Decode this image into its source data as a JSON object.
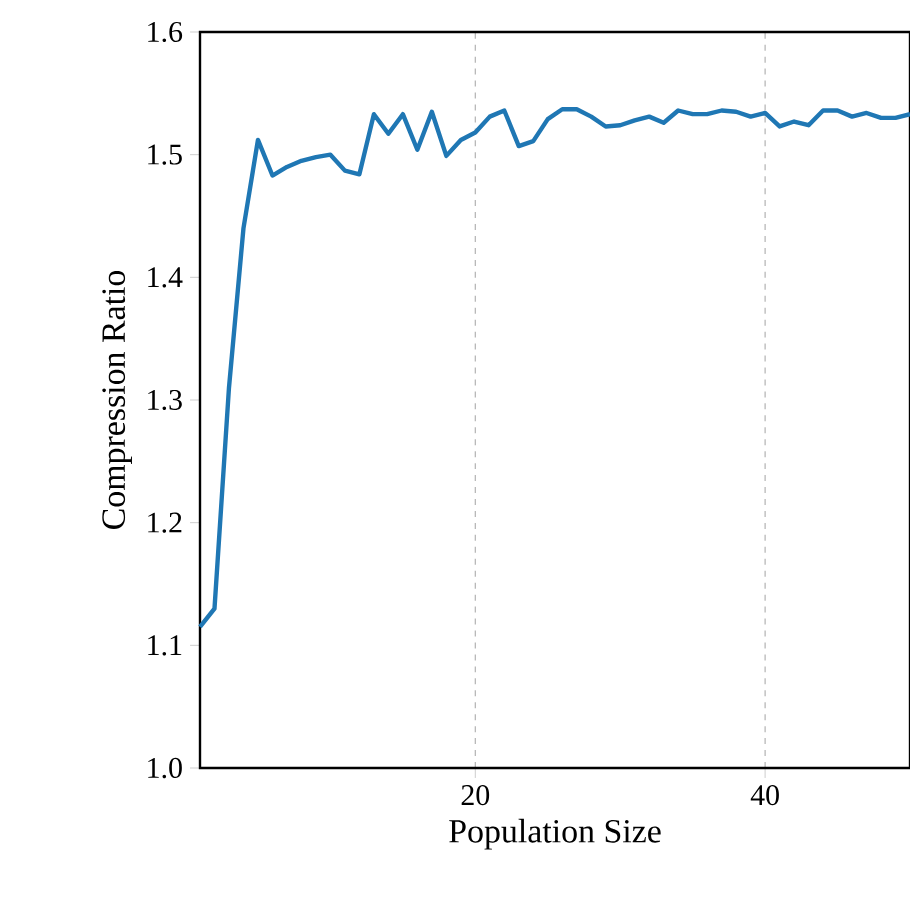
{
  "chart_data": {
    "type": "line",
    "xlabel": "Population Size",
    "ylabel": "Compression Ratio",
    "x": [
      1,
      2,
      3,
      4,
      5,
      6,
      7,
      8,
      9,
      10,
      11,
      12,
      13,
      14,
      15,
      16,
      17,
      18,
      19,
      20,
      21,
      22,
      23,
      24,
      25,
      26,
      27,
      28,
      29,
      30,
      31,
      32,
      33,
      34,
      35,
      36,
      37,
      38,
      39,
      40,
      41,
      42,
      43,
      44,
      45,
      46,
      47,
      48,
      49,
      50
    ],
    "series": [
      {
        "color": "#1f77b4",
        "values": [
          1.115,
          1.13,
          1.31,
          1.44,
          1.512,
          1.483,
          1.49,
          1.495,
          1.498,
          1.5,
          1.487,
          1.484,
          1.533,
          1.517,
          1.533,
          1.504,
          1.535,
          1.499,
          1.512,
          1.518,
          1.531,
          1.536,
          1.507,
          1.511,
          1.529,
          1.537,
          1.537,
          1.531,
          1.523,
          1.524,
          1.528,
          1.531,
          1.526,
          1.536,
          1.533,
          1.533,
          1.536,
          1.535,
          1.531,
          1.534,
          1.523,
          1.527,
          1.524,
          1.536,
          1.536,
          1.531,
          1.534,
          1.53,
          1.53,
          1.533
        ]
      }
    ],
    "xlim": [
      1,
      50
    ],
    "xticks": [
      20,
      40
    ],
    "ylim": [
      1.0,
      1.6
    ],
    "yticks": [
      {
        "value": 1.0,
        "label": "1.0"
      },
      {
        "value": 1.1,
        "label": "1.1"
      },
      {
        "value": 1.2,
        "label": "1.2"
      },
      {
        "value": 1.3,
        "label": "1.3"
      },
      {
        "value": 1.4,
        "label": "1.4"
      },
      {
        "value": 1.5,
        "label": "1.5"
      },
      {
        "value": 1.6,
        "label": "1.6"
      }
    ],
    "grid": "x",
    "marker": "none",
    "line_style": "solid"
  }
}
